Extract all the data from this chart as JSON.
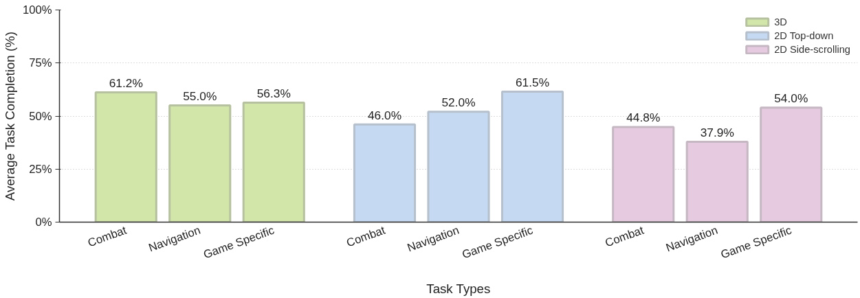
{
  "chart_data": {
    "type": "bar",
    "xlabel": "Task Types",
    "ylabel": "Average Task Completion (%)",
    "categories": [
      "Combat",
      "Navigation",
      "Game Specific",
      "Combat",
      "Navigation",
      "Game Specific",
      "Combat",
      "Navigation",
      "Game Specific"
    ],
    "series": [
      {
        "name": "3D",
        "color": "#d3e6a9",
        "values": [
          61.2,
          55.0,
          56.3,
          null,
          null,
          null,
          null,
          null,
          null
        ],
        "value_labels": [
          "61.2%",
          "55.0%",
          "56.3%",
          null,
          null,
          null,
          null,
          null,
          null
        ]
      },
      {
        "name": "2D Top-down",
        "color": "#c5daf2",
        "values": [
          null,
          null,
          null,
          46.0,
          52.0,
          61.5,
          null,
          null,
          null
        ],
        "value_labels": [
          null,
          null,
          null,
          "46.0%",
          "52.0%",
          "61.5%",
          null,
          null,
          null
        ]
      },
      {
        "name": "2D Side-scrolling",
        "color": "#e6cbe0",
        "values": [
          null,
          null,
          null,
          null,
          null,
          null,
          44.8,
          37.9,
          54.0
        ],
        "value_labels": [
          null,
          null,
          null,
          null,
          null,
          null,
          "44.8%",
          "37.9%",
          "54.0%"
        ]
      }
    ],
    "ylim": [
      0,
      100
    ],
    "yticks": [
      {
        "value": 0,
        "label": "0%"
      },
      {
        "value": 25,
        "label": "25%"
      },
      {
        "value": 50,
        "label": "50%"
      },
      {
        "value": 75,
        "label": "75%"
      },
      {
        "value": 100,
        "label": "100%"
      }
    ],
    "grid": "y",
    "legend": "top right"
  }
}
